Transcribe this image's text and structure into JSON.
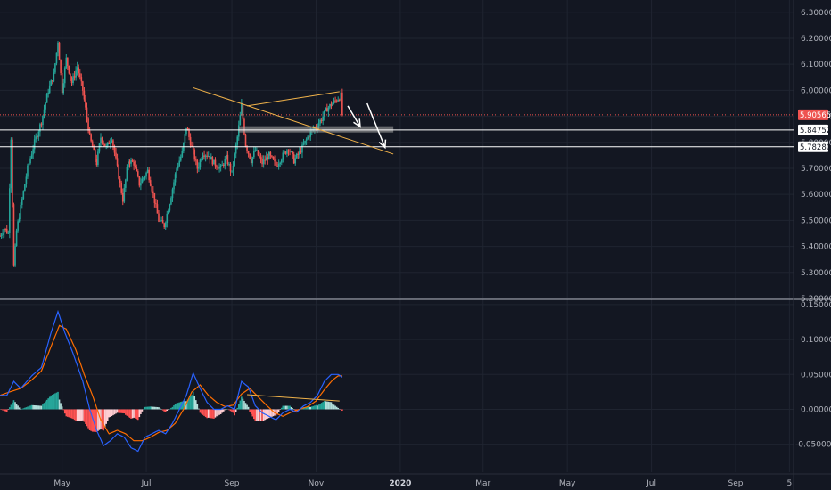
{
  "colors": {
    "background": "#131722",
    "grid": "#1f2430",
    "axis_text": "#b2b5be",
    "up": "#26a69a",
    "down": "#ef5350",
    "macd_line": "#2962ff",
    "signal_line": "#ff6d00",
    "hist_up_strong": "#26a69a",
    "hist_up_weak": "#b2dfdb",
    "hist_down_strong": "#ff5252",
    "hist_down_weak": "#ffcdd2",
    "trendline": "#f0b24a",
    "zone": "#9e9e9e"
  },
  "chart_data": [
    {
      "type": "candlestick",
      "panel": "price",
      "x_axis": {
        "tick_labels": [
          "May",
          "Jul",
          "Sep",
          "Nov",
          "2020",
          "Mar",
          "May",
          "Jul",
          "Sep",
          "5"
        ],
        "tick_days": [
          30,
          91,
          153,
          214,
          275,
          335,
          396,
          457,
          518,
          557
        ],
        "bold_labels": [
          "2020"
        ],
        "range_days": [
          -15,
          560
        ]
      },
      "y_axis": {
        "side": "right",
        "tick_labels": [
          "5.20000",
          "5.30000",
          "5.40000",
          "5.50000",
          "5.60000",
          "5.70000",
          "5.80000",
          "5.90000",
          "6.00000",
          "6.10000",
          "6.20000",
          "6.30000"
        ],
        "range": [
          5.2,
          6.33
        ]
      },
      "grid": true,
      "price_path": [
        [
          -15,
          5.44
        ],
        [
          -12,
          5.47
        ],
        [
          -9,
          5.45
        ],
        [
          -7,
          5.82
        ],
        [
          -5,
          5.32
        ],
        [
          -3,
          5.46
        ],
        [
          0,
          5.55
        ],
        [
          5,
          5.7
        ],
        [
          10,
          5.8
        ],
        [
          15,
          5.88
        ],
        [
          20,
          6.0
        ],
        [
          24,
          6.06
        ],
        [
          27,
          6.19
        ],
        [
          30,
          6.0
        ],
        [
          33,
          6.12
        ],
        [
          37,
          6.03
        ],
        [
          41,
          6.09
        ],
        [
          45,
          6.0
        ],
        [
          50,
          5.82
        ],
        [
          55,
          5.72
        ],
        [
          58,
          5.82
        ],
        [
          62,
          5.78
        ],
        [
          66,
          5.82
        ],
        [
          70,
          5.7
        ],
        [
          74,
          5.58
        ],
        [
          78,
          5.73
        ],
        [
          82,
          5.72
        ],
        [
          86,
          5.64
        ],
        [
          92,
          5.69
        ],
        [
          96,
          5.6
        ],
        [
          100,
          5.5
        ],
        [
          104,
          5.48
        ],
        [
          108,
          5.57
        ],
        [
          113,
          5.7
        ],
        [
          117,
          5.76
        ],
        [
          120,
          5.86
        ],
        [
          124,
          5.78
        ],
        [
          128,
          5.7
        ],
        [
          132,
          5.76
        ],
        [
          136,
          5.75
        ],
        [
          140,
          5.72
        ],
        [
          145,
          5.7
        ],
        [
          149,
          5.74
        ],
        [
          153,
          5.68
        ],
        [
          157,
          5.82
        ],
        [
          160,
          5.94
        ],
        [
          163,
          5.79
        ],
        [
          167,
          5.73
        ],
        [
          170,
          5.77
        ],
        [
          175,
          5.72
        ],
        [
          180,
          5.75
        ],
        [
          185,
          5.71
        ],
        [
          190,
          5.75
        ],
        [
          194,
          5.78
        ],
        [
          198,
          5.73
        ],
        [
          202,
          5.76
        ],
        [
          206,
          5.8
        ],
        [
          210,
          5.84
        ],
        [
          214,
          5.86
        ],
        [
          218,
          5.89
        ],
        [
          222,
          5.93
        ],
        [
          226,
          5.95
        ],
        [
          230,
          5.97
        ],
        [
          232,
          5.98
        ],
        [
          233,
          5.91
        ]
      ],
      "last_price": 5.90565,
      "price_labels": [
        "5.90565",
        "5.84752",
        "5.78280"
      ],
      "price_levels": [
        5.90565,
        5.84752,
        5.7828
      ],
      "annotations": {
        "horizontal_lines": [
          5.84752,
          5.7828
        ],
        "zone": {
          "from_day": 158,
          "to_day": 270,
          "low": 5.838,
          "high": 5.862
        },
        "trendlines": [
          {
            "from": [
              125,
              6.01
            ],
            "to": [
              270,
              5.755
            ]
          },
          {
            "from": [
              164,
              5.94
            ],
            "to": [
              231,
              5.995
            ]
          }
        ],
        "arrows": [
          {
            "from": [
              237,
              5.94
            ],
            "to": [
              246,
              5.86
            ]
          },
          {
            "from": [
              251,
              5.95
            ],
            "to": [
              264,
              5.78
            ]
          }
        ]
      }
    },
    {
      "type": "macd",
      "panel": "indicator",
      "y_axis": {
        "side": "right",
        "tick_labels": [
          "-0.05000",
          "0.00000",
          "0.05000",
          "0.10000",
          "0.15000"
        ],
        "range": [
          -0.09,
          0.155
        ]
      },
      "macd_path": [
        [
          -15,
          0.02
        ],
        [
          -10,
          0.02
        ],
        [
          -5,
          0.04
        ],
        [
          0,
          0.03
        ],
        [
          8,
          0.048
        ],
        [
          15,
          0.06
        ],
        [
          22,
          0.11
        ],
        [
          27,
          0.14
        ],
        [
          32,
          0.11
        ],
        [
          38,
          0.08
        ],
        [
          45,
          0.04
        ],
        [
          50,
          0.0
        ],
        [
          55,
          -0.03
        ],
        [
          60,
          -0.052
        ],
        [
          65,
          -0.045
        ],
        [
          70,
          -0.035
        ],
        [
          75,
          -0.04
        ],
        [
          80,
          -0.055
        ],
        [
          85,
          -0.06
        ],
        [
          90,
          -0.04
        ],
        [
          95,
          -0.035
        ],
        [
          100,
          -0.03
        ],
        [
          105,
          -0.035
        ],
        [
          110,
          -0.02
        ],
        [
          115,
          0.0
        ],
        [
          120,
          0.02
        ],
        [
          125,
          0.052
        ],
        [
          130,
          0.03
        ],
        [
          135,
          0.01
        ],
        [
          140,
          0.0
        ],
        [
          145,
          0.0
        ],
        [
          150,
          0.005
        ],
        [
          155,
          0.0
        ],
        [
          160,
          0.04
        ],
        [
          165,
          0.032
        ],
        [
          170,
          0.005
        ],
        [
          175,
          -0.005
        ],
        [
          180,
          -0.01
        ],
        [
          185,
          -0.015
        ],
        [
          190,
          -0.005
        ],
        [
          195,
          0.0
        ],
        [
          200,
          -0.004
        ],
        [
          205,
          0.005
        ],
        [
          210,
          0.01
        ],
        [
          215,
          0.02
        ],
        [
          220,
          0.04
        ],
        [
          225,
          0.05
        ],
        [
          230,
          0.05
        ],
        [
          233,
          0.046
        ]
      ],
      "signal_path": [
        [
          -15,
          0.02
        ],
        [
          -8,
          0.025
        ],
        [
          0,
          0.03
        ],
        [
          8,
          0.042
        ],
        [
          15,
          0.055
        ],
        [
          22,
          0.09
        ],
        [
          28,
          0.12
        ],
        [
          33,
          0.115
        ],
        [
          40,
          0.085
        ],
        [
          46,
          0.05
        ],
        [
          52,
          0.02
        ],
        [
          58,
          -0.015
        ],
        [
          64,
          -0.035
        ],
        [
          70,
          -0.03
        ],
        [
          76,
          -0.035
        ],
        [
          82,
          -0.045
        ],
        [
          88,
          -0.045
        ],
        [
          94,
          -0.04
        ],
        [
          100,
          -0.033
        ],
        [
          106,
          -0.03
        ],
        [
          112,
          -0.02
        ],
        [
          118,
          0.0
        ],
        [
          124,
          0.025
        ],
        [
          130,
          0.035
        ],
        [
          136,
          0.02
        ],
        [
          142,
          0.01
        ],
        [
          148,
          0.004
        ],
        [
          154,
          0.006
        ],
        [
          160,
          0.022
        ],
        [
          166,
          0.03
        ],
        [
          172,
          0.018
        ],
        [
          178,
          0.006
        ],
        [
          184,
          -0.005
        ],
        [
          190,
          -0.01
        ],
        [
          196,
          -0.004
        ],
        [
          202,
          0.0
        ],
        [
          208,
          0.004
        ],
        [
          214,
          0.012
        ],
        [
          220,
          0.028
        ],
        [
          226,
          0.042
        ],
        [
          230,
          0.048
        ],
        [
          233,
          0.048
        ]
      ],
      "trendline": {
        "from": [
          164,
          0.021
        ],
        "to": [
          231,
          0.012
        ]
      }
    }
  ]
}
